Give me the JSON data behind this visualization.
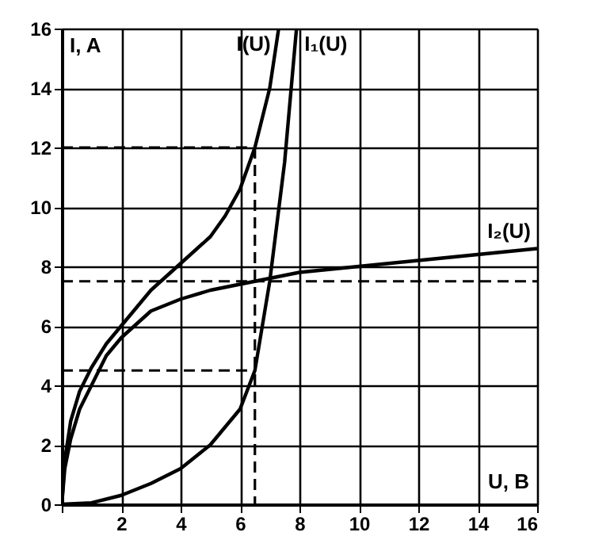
{
  "chart_data": {
    "type": "line",
    "xlabel": "U, B",
    "ylabel": "I, A",
    "xlim": [
      0,
      16
    ],
    "ylim": [
      0,
      16
    ],
    "xticks": [
      {
        "value": 0,
        "label": null
      },
      2,
      4,
      6,
      8,
      10,
      12,
      14,
      16
    ],
    "yticks": [
      0,
      2,
      4,
      6,
      8,
      10,
      12,
      14,
      16
    ],
    "grid": true,
    "marker": "none",
    "series": [
      {
        "name": "I(U)",
        "color": "#000000",
        "line_style": "solid",
        "x": [
          0,
          0.1,
          0.3,
          0.6,
          1,
          1.5,
          2,
          3,
          4,
          5,
          5.5,
          6,
          6.5,
          7,
          7.3
        ],
        "values": [
          0,
          1.5,
          2.8,
          3.8,
          4.6,
          5.4,
          6.0,
          7.2,
          8.1,
          9.0,
          9.7,
          10.6,
          12.0,
          14.0,
          16.0
        ]
      },
      {
        "name": "I₁(U)",
        "color": "#000000",
        "line_style": "solid",
        "x": [
          0,
          1,
          2,
          3,
          4,
          5,
          6,
          6.5,
          7,
          7.5,
          7.9
        ],
        "values": [
          0,
          0.05,
          0.3,
          0.7,
          1.2,
          2.0,
          3.2,
          4.5,
          7.5,
          11.5,
          16.0
        ]
      },
      {
        "name": "I₂(U)",
        "color": "#000000",
        "line_style": "solid",
        "x": [
          0,
          0.1,
          0.3,
          0.6,
          1,
          1.5,
          2,
          3,
          4,
          5,
          6,
          6.5,
          8,
          10,
          12,
          14,
          16
        ],
        "values": [
          0,
          1.2,
          2.2,
          3.2,
          4.0,
          5.0,
          5.6,
          6.5,
          6.9,
          7.2,
          7.4,
          7.5,
          7.8,
          8.0,
          8.2,
          8.4,
          8.6
        ]
      },
      {
        "color": "#000000",
        "line_style": "dashed",
        "x": [
          0,
          6.5
        ],
        "values": [
          12,
          12
        ]
      },
      {
        "color": "#000000",
        "line_style": "dashed",
        "x": [
          6.5,
          6.5
        ],
        "values": [
          12,
          0
        ]
      },
      {
        "color": "#000000",
        "line_style": "dashed",
        "x": [
          0,
          16
        ],
        "values": [
          7.5,
          7.5
        ]
      },
      {
        "color": "#000000",
        "line_style": "dashed",
        "x": [
          0,
          6.5
        ],
        "values": [
          4.5,
          4.5
        ]
      }
    ]
  }
}
